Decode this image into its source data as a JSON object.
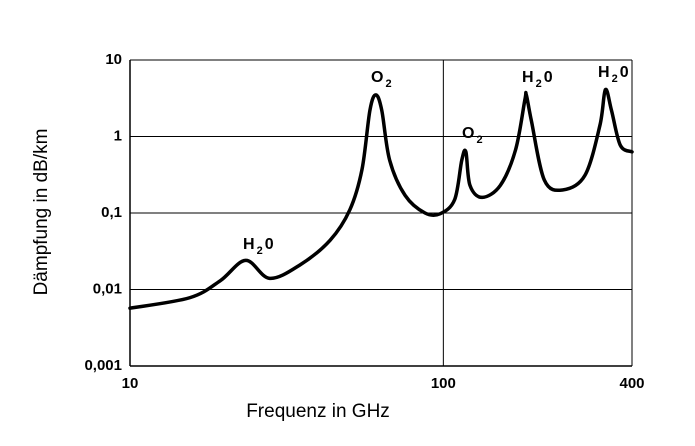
{
  "chart_data": {
    "type": "line",
    "xlabel": "Frequenz in GHz",
    "ylabel": "Dämpfung in dB/km",
    "xscale": "log",
    "yscale": "log",
    "grid": true,
    "xlim": [
      10,
      400
    ],
    "ylim": [
      0.001,
      10
    ],
    "xticks": [
      10,
      100,
      400
    ],
    "yticks": [
      {
        "value": 0.001,
        "label": "0,001"
      },
      {
        "value": 0.01,
        "label": "0,01"
      },
      {
        "value": 0.1,
        "label": "0,1"
      },
      1,
      10
    ],
    "series": [
      {
        "color": "#000000",
        "x": [
          10,
          15.5,
          19.4,
          23.4,
          27.9,
          34.9,
          43.5,
          50.3,
          55,
          58.3,
          60.9,
          63.6,
          67.4,
          75.5,
          87.4,
          97.8,
          108.7,
          114.5,
          118,
          121.6,
          133,
          152,
          170,
          182,
          184,
          191,
          210,
          240,
          283,
          316,
          329,
          344,
          367,
          400
        ],
        "values": [
          0.0057,
          0.0078,
          0.013,
          0.024,
          0.014,
          0.021,
          0.044,
          0.11,
          0.37,
          2.2,
          3.5,
          2.2,
          0.49,
          0.17,
          0.1,
          0.098,
          0.15,
          0.49,
          0.63,
          0.23,
          0.16,
          0.23,
          0.67,
          3.0,
          3.5,
          1.6,
          0.27,
          0.2,
          0.31,
          1.4,
          4.1,
          2.2,
          0.77,
          0.63
        ]
      }
    ],
    "annotations": [
      {
        "text": "H",
        "sub": "2",
        "after": "0"
      },
      {
        "text": "O",
        "sub": "2"
      },
      {
        "text": "O",
        "sub": "2"
      },
      {
        "text": "H",
        "sub": "2",
        "after": "0"
      },
      {
        "text": "H",
        "sub": "2",
        "after": "0"
      }
    ]
  }
}
